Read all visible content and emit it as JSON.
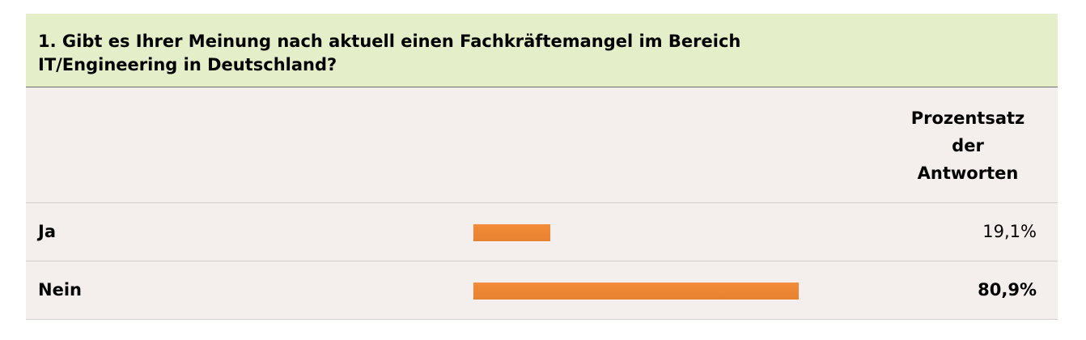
{
  "question": {
    "title_line1": "1. Gibt es Ihrer Meinung nach aktuell einen Fachkräftemangel im Bereich",
    "title_line2": "IT/Engineering in Deutschland?"
  },
  "chart_data": {
    "type": "bar",
    "orientation": "horizontal",
    "column_header": [
      "Prozentsatz",
      "der",
      "Antworten"
    ],
    "categories": [
      "Ja",
      "Nein"
    ],
    "values": [
      19.1,
      80.9
    ],
    "value_labels": [
      "19,1%",
      "80,9%"
    ],
    "xlim": [
      0,
      100
    ],
    "bar_color": "#f08a36",
    "header_color": "#e4eec8",
    "body_color": "#f4eeec"
  }
}
